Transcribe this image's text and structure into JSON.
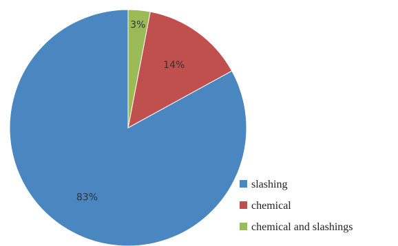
{
  "chart_data": {
    "type": "pie",
    "title": "",
    "slices": [
      {
        "name": "slashing",
        "value": 83,
        "label": "83%",
        "color": "#4a86c0"
      },
      {
        "name": "chemical",
        "value": 14,
        "label": "14%",
        "color": "#c0504d"
      },
      {
        "name": "chemical and slashings",
        "value": 3,
        "label": "3%",
        "color": "#9bbb59"
      }
    ],
    "start_angle_deg": 0,
    "direction": "counterclockwise",
    "legend_position": "bottom-right"
  }
}
